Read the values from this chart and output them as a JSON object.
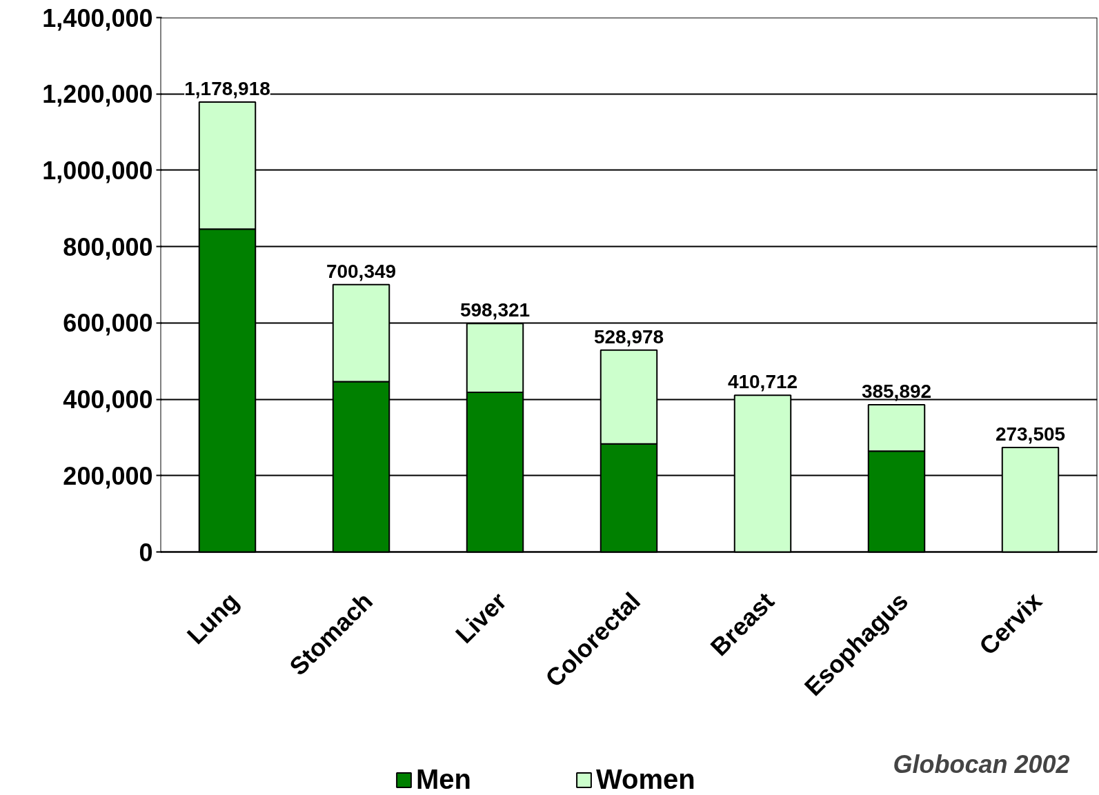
{
  "chart_data": {
    "type": "bar",
    "stacked": true,
    "categories": [
      "Lung",
      "Stomach",
      "Liver",
      "Colorectal",
      "Breast",
      "Esophagus",
      "Cervix"
    ],
    "series": [
      {
        "name": "Men",
        "color": "#008000",
        "values": [
          846000,
          446000,
          418000,
          283000,
          null,
          264000,
          null
        ]
      },
      {
        "name": "Women",
        "color": "#ccffcc",
        "values": [
          332918,
          254349,
          180321,
          245978,
          410712,
          121892,
          273505
        ]
      }
    ],
    "totals": [
      "1,178,918",
      "700,349",
      "598,321",
      "528,978",
      "410,712",
      "385,892",
      "273,505"
    ],
    "ylim": [
      0,
      1400000
    ],
    "yticks": [
      {
        "value": 0,
        "label": "0"
      },
      {
        "value": 200000,
        "label": "200,000"
      },
      {
        "value": 400000,
        "label": "400,000"
      },
      {
        "value": 600000,
        "label": "600,000"
      },
      {
        "value": 800000,
        "label": "800,000"
      },
      {
        "value": 1000000,
        "label": "1,000,000"
      },
      {
        "value": 1200000,
        "label": "1,200,000"
      },
      {
        "value": 1400000,
        "label": "1,400,000"
      }
    ],
    "grid": "y",
    "legend": "bottom",
    "annotations": [
      "Globocan 2002"
    ]
  }
}
